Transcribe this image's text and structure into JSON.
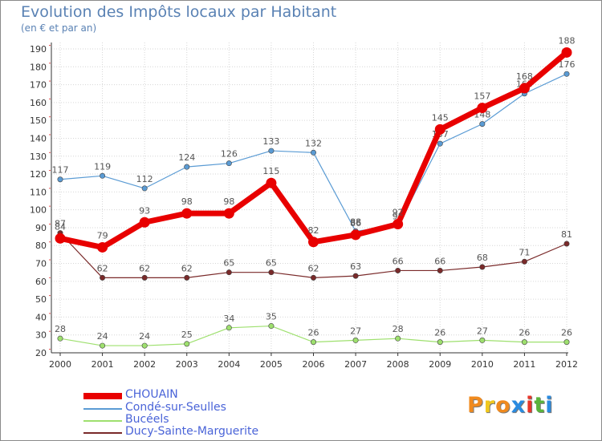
{
  "title": "Evolution des Impôts locaux par Habitant",
  "subtitle": "(en € et par an)",
  "brand": {
    "letters": [
      "P",
      "r",
      "o",
      "x",
      "i",
      "t",
      "i"
    ],
    "colors": [
      "#f08a1e",
      "#f0c81e",
      "#f08a1e",
      "#2a8be0",
      "#e8362a",
      "#5ab43c",
      "#2a8be0"
    ]
  },
  "chart_data": {
    "type": "line",
    "title": "Evolution des Impôts locaux par Habitant",
    "subtitle": "(en € et par an)",
    "xlabel": "",
    "ylabel": "",
    "categories": [
      "2000",
      "2001",
      "2002",
      "2003",
      "2004",
      "2005",
      "2006",
      "2007",
      "2008",
      "2009",
      "2010",
      "2011",
      "2012"
    ],
    "ylim": [
      20,
      190
    ],
    "yticks": [
      20,
      30,
      40,
      50,
      60,
      70,
      80,
      90,
      100,
      110,
      120,
      130,
      140,
      150,
      160,
      170,
      180,
      190
    ],
    "grid": true,
    "legend_position": "bottom-left",
    "series": [
      {
        "name": "Ducy-Sainte-Marguerite",
        "color": "#7a2a2a",
        "weight": "thin",
        "values": [
          87,
          62,
          62,
          62,
          65,
          65,
          62,
          63,
          66,
          66,
          68,
          71,
          81
        ]
      },
      {
        "name": "Bucéels",
        "color": "#9ee06e",
        "weight": "thin",
        "values": [
          28,
          24,
          24,
          25,
          34,
          35,
          26,
          27,
          28,
          26,
          27,
          26,
          26
        ]
      },
      {
        "name": "Condé-sur-Seulles",
        "color": "#5a9bd4",
        "weight": "thin",
        "values": [
          117,
          119,
          112,
          124,
          126,
          133,
          132,
          88,
          91,
          137,
          148,
          165,
          176
        ]
      },
      {
        "name": "CHOUAIN",
        "color": "#e80000",
        "weight": "thick",
        "values": [
          84,
          79,
          93,
          98,
          98,
          115,
          82,
          86,
          92,
          145,
          157,
          168,
          188
        ]
      }
    ],
    "legend_order": [
      "CHOUAIN",
      "Condé-sur-Seulles",
      "Bucéels",
      "Ducy-Sainte-Marguerite"
    ]
  }
}
